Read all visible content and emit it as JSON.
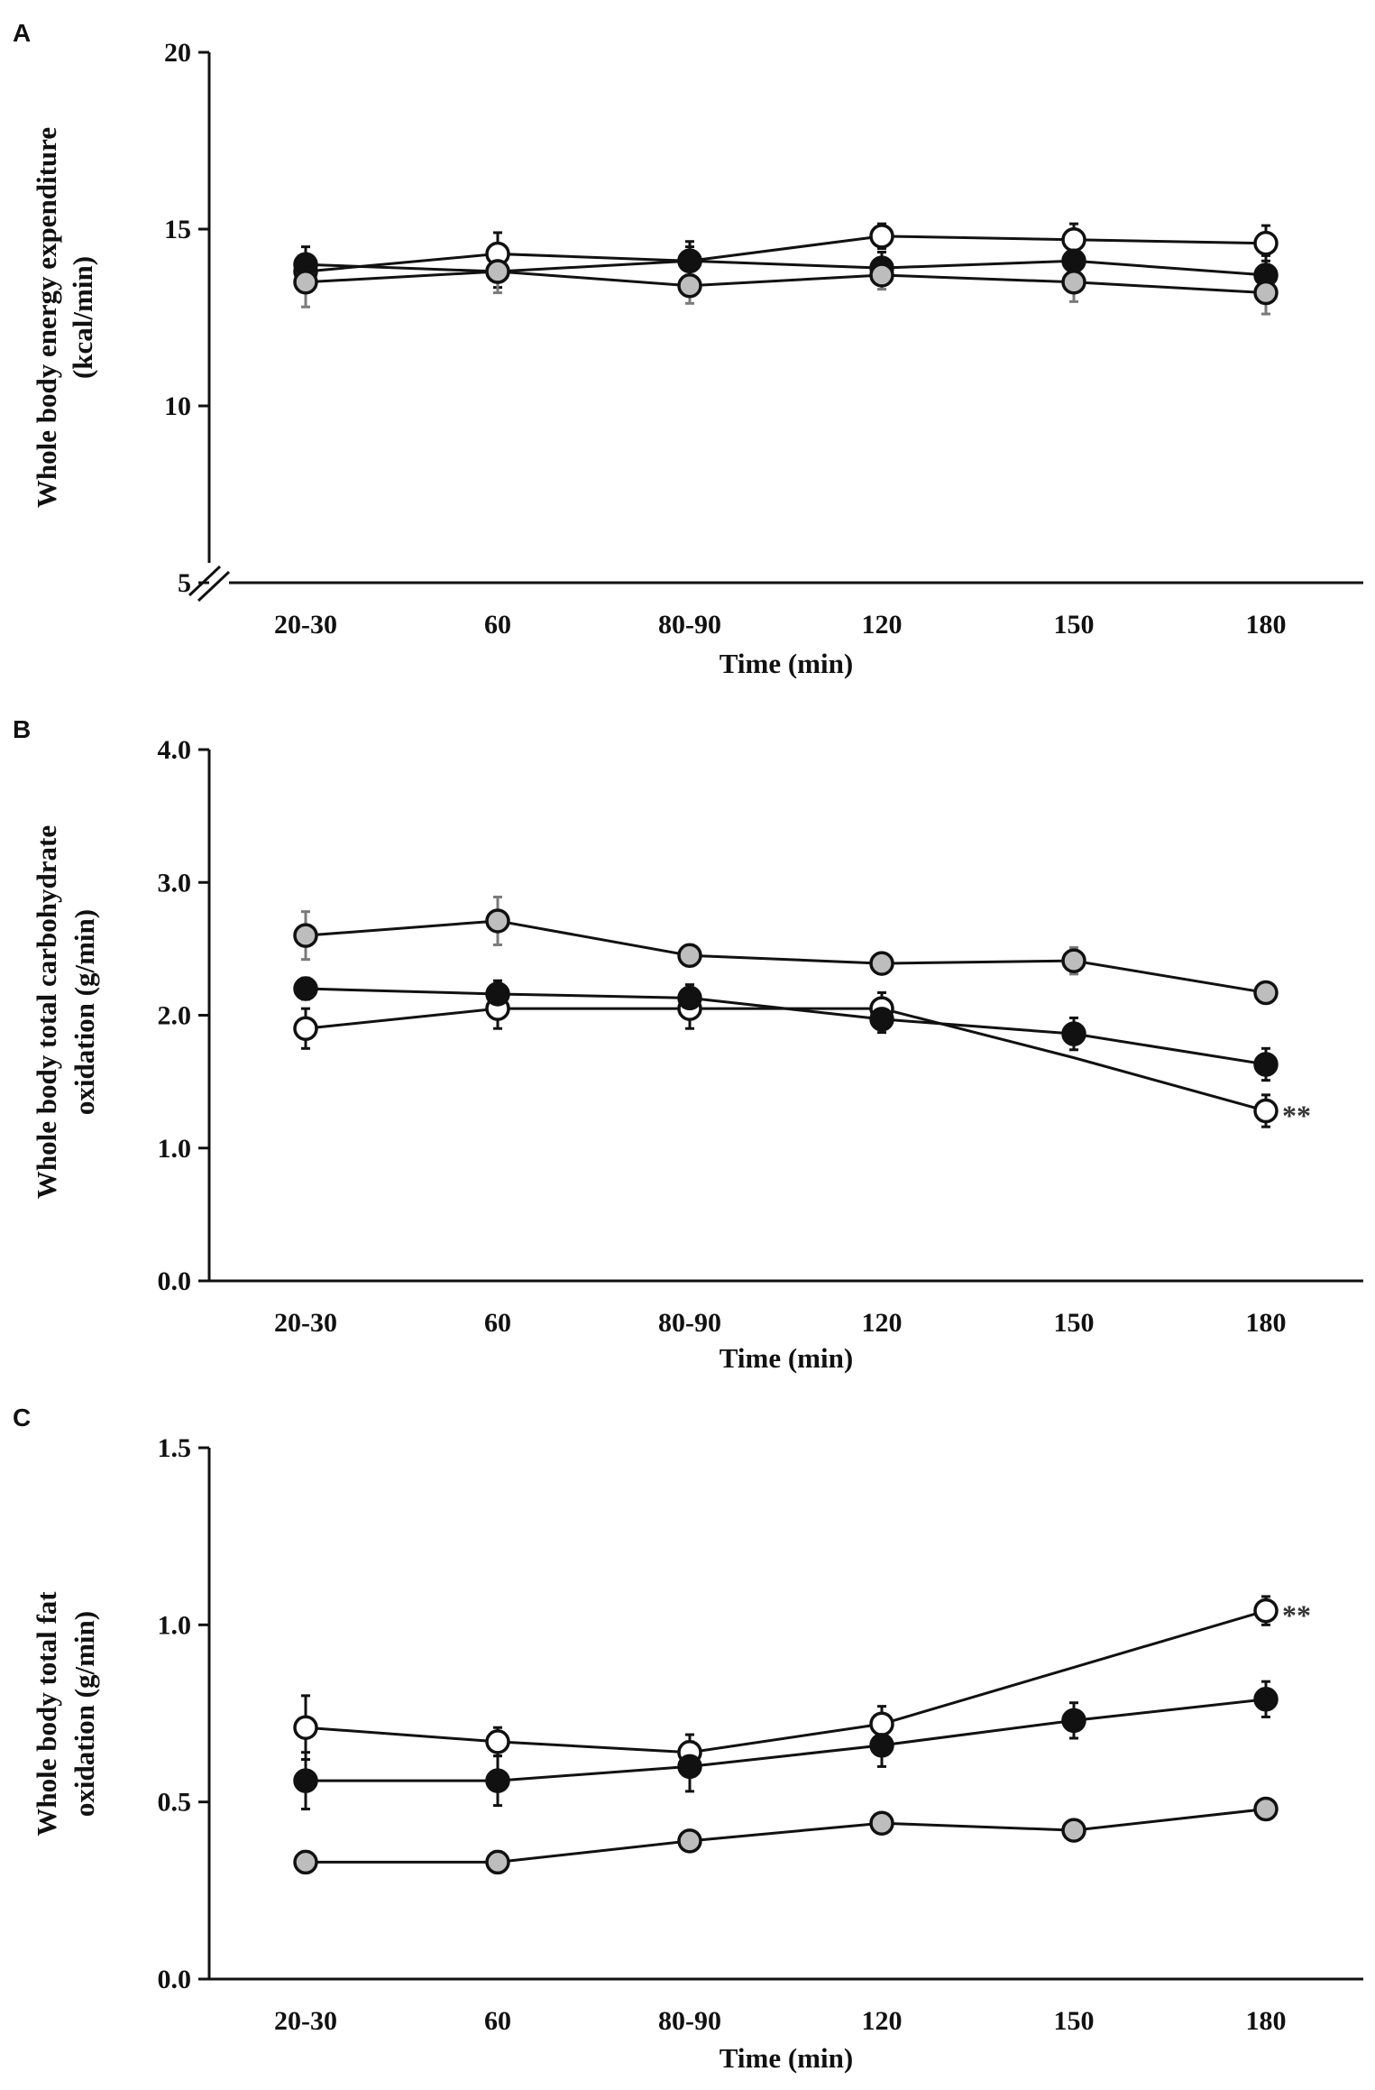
{
  "chart_data": [
    {
      "panel": "A",
      "type": "line",
      "categories": [
        "20-30",
        "60",
        "80-90",
        "120",
        "150",
        "180"
      ],
      "ylim": [
        5,
        20
      ],
      "yticks": [
        "5",
        "10",
        "15",
        "20"
      ],
      "axis_break": true,
      "xlabel": "Time (min)",
      "ylabel_lines": [
        "Whole body energy expenditure",
        "(kcal/min)"
      ],
      "series": [
        {
          "name": "open",
          "marker": "open-circle",
          "values": [
            13.8,
            14.3,
            14.1,
            14.8,
            14.7,
            14.6
          ],
          "errors": [
            0.45,
            0.6,
            0.4,
            0.35,
            0.45,
            0.5
          ]
        },
        {
          "name": "filled",
          "marker": "black-circle",
          "values": [
            14.0,
            13.8,
            14.1,
            13.9,
            14.1,
            13.7
          ],
          "errors": [
            0.5,
            0.45,
            0.55,
            0.45,
            0.5,
            0.55
          ]
        },
        {
          "name": "grey",
          "marker": "grey-circle",
          "values": [
            13.5,
            13.8,
            13.4,
            13.7,
            13.5,
            13.2
          ],
          "errors": [
            0.7,
            0.6,
            0.5,
            0.4,
            0.55,
            0.6
          ]
        }
      ],
      "annotations": []
    },
    {
      "panel": "B",
      "type": "line",
      "categories": [
        "20-30",
        "60",
        "80-90",
        "120",
        "150",
        "180"
      ],
      "ylim": [
        0,
        4
      ],
      "yticks": [
        "0.0",
        "1.0",
        "2.0",
        "3.0",
        "4.0"
      ],
      "axis_break": false,
      "xlabel": "Time (min)",
      "ylabel_lines": [
        "Whole body total carbohydrate",
        "oxidation (g/min)"
      ],
      "series": [
        {
          "name": "open",
          "marker": "open-circle",
          "values": [
            1.9,
            2.05,
            2.05,
            2.05,
            1.68,
            1.28
          ],
          "errors": [
            0.15,
            0.15,
            0.15,
            0.12,
            0.0,
            0.12
          ]
        },
        {
          "name": "filled",
          "marker": "black-circle",
          "values": [
            2.2,
            2.16,
            2.13,
            1.97,
            1.86,
            1.63
          ],
          "errors": [
            0.08,
            0.1,
            0.1,
            0.1,
            0.12,
            0.12
          ]
        },
        {
          "name": "grey",
          "marker": "grey-circle",
          "values": [
            2.6,
            2.71,
            2.45,
            2.39,
            2.41,
            2.17
          ],
          "errors": [
            0.18,
            0.18,
            0.08,
            0.06,
            0.1,
            0.06
          ]
        }
      ],
      "annotations": [
        {
          "series": "open",
          "index": 5,
          "text": "**"
        }
      ]
    },
    {
      "panel": "C",
      "type": "line",
      "categories": [
        "20-30",
        "60",
        "80-90",
        "120",
        "150",
        "180"
      ],
      "ylim": [
        0,
        1.5
      ],
      "yticks": [
        "0.0",
        "0.5",
        "1.0",
        "1.5"
      ],
      "axis_break": false,
      "xlabel": "Time (min)",
      "ylabel_lines": [
        "Whole body total fat",
        "oxidation (g/min)"
      ],
      "series": [
        {
          "name": "open",
          "marker": "open-circle",
          "values": [
            0.71,
            0.67,
            0.64,
            0.72,
            0.88,
            1.04
          ],
          "errors": [
            0.09,
            0.04,
            0.05,
            0.05,
            0.0,
            0.04
          ]
        },
        {
          "name": "filled",
          "marker": "black-circle",
          "values": [
            0.56,
            0.56,
            0.6,
            0.66,
            0.73,
            0.79
          ],
          "errors": [
            0.08,
            0.07,
            0.07,
            0.06,
            0.05,
            0.05
          ]
        },
        {
          "name": "grey",
          "marker": "grey-circle",
          "values": [
            0.33,
            0.33,
            0.39,
            0.44,
            0.42,
            0.48
          ],
          "errors": [
            0.03,
            0.03,
            0.02,
            0.02,
            0.02,
            0.02
          ]
        }
      ],
      "annotations": [
        {
          "series": "open",
          "index": 4,
          "text": ""
        },
        {
          "series": "open",
          "index": 5,
          "text": "**"
        }
      ]
    }
  ]
}
